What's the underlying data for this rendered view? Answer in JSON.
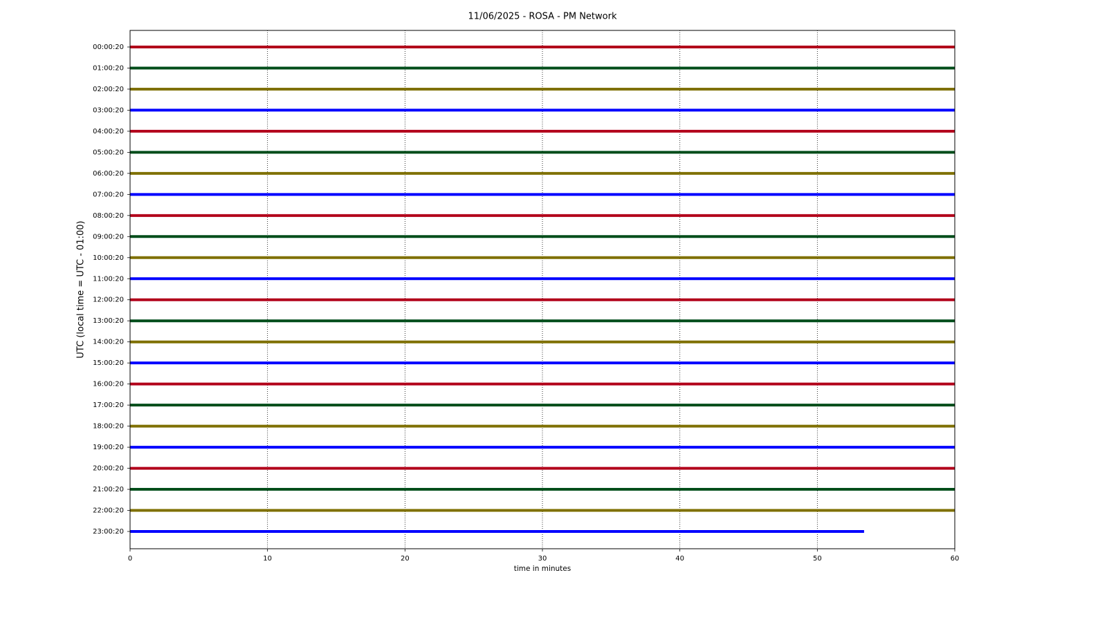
{
  "chart_data": {
    "type": "helicorder",
    "title": "11/06/2025 - ROSA - PM Network",
    "x_label": "time in minutes",
    "y_label": "UTC (local time = UTC - 01:00)",
    "xlim": [
      0,
      60
    ],
    "xticks": [
      0,
      10,
      20,
      30,
      40,
      50,
      60
    ],
    "grid": true,
    "series": [
      {
        "name": "00:00:20",
        "color": "#b2001a",
        "x": [
          0,
          60
        ]
      },
      {
        "name": "01:00:20",
        "color": "#004d1a",
        "x": [
          0,
          60
        ]
      },
      {
        "name": "02:00:20",
        "color": "#7f7000",
        "x": [
          0,
          60
        ]
      },
      {
        "name": "03:00:20",
        "color": "#0000ff",
        "x": [
          0,
          60
        ]
      },
      {
        "name": "04:00:20",
        "color": "#b2001a",
        "x": [
          0,
          60
        ]
      },
      {
        "name": "05:00:20",
        "color": "#004d1a",
        "x": [
          0,
          60
        ]
      },
      {
        "name": "06:00:20",
        "color": "#7f7000",
        "x": [
          0,
          60
        ]
      },
      {
        "name": "07:00:20",
        "color": "#0000ff",
        "x": [
          0,
          60
        ]
      },
      {
        "name": "08:00:20",
        "color": "#b2001a",
        "x": [
          0,
          60
        ]
      },
      {
        "name": "09:00:20",
        "color": "#004d1a",
        "x": [
          0,
          60
        ]
      },
      {
        "name": "10:00:20",
        "color": "#7f7000",
        "x": [
          0,
          60
        ]
      },
      {
        "name": "11:00:20",
        "color": "#0000ff",
        "x": [
          0,
          60
        ]
      },
      {
        "name": "12:00:20",
        "color": "#b2001a",
        "x": [
          0,
          60
        ]
      },
      {
        "name": "13:00:20",
        "color": "#004d1a",
        "x": [
          0,
          60
        ]
      },
      {
        "name": "14:00:20",
        "color": "#7f7000",
        "x": [
          0,
          60
        ]
      },
      {
        "name": "15:00:20",
        "color": "#0000ff",
        "x": [
          0,
          60
        ]
      },
      {
        "name": "16:00:20",
        "color": "#b2001a",
        "x": [
          0,
          60
        ]
      },
      {
        "name": "17:00:20",
        "color": "#004d1a",
        "x": [
          0,
          60
        ]
      },
      {
        "name": "18:00:20",
        "color": "#7f7000",
        "x": [
          0,
          60
        ]
      },
      {
        "name": "19:00:20",
        "color": "#0000ff",
        "x": [
          0,
          60
        ]
      },
      {
        "name": "20:00:20",
        "color": "#b2001a",
        "x": [
          0,
          60
        ]
      },
      {
        "name": "21:00:20",
        "color": "#004d1a",
        "x": [
          0,
          60
        ]
      },
      {
        "name": "22:00:20",
        "color": "#7f7000",
        "x": [
          0,
          60
        ]
      },
      {
        "name": "23:00:20",
        "color": "#0000ff",
        "x": [
          0,
          53.4
        ]
      }
    ]
  }
}
